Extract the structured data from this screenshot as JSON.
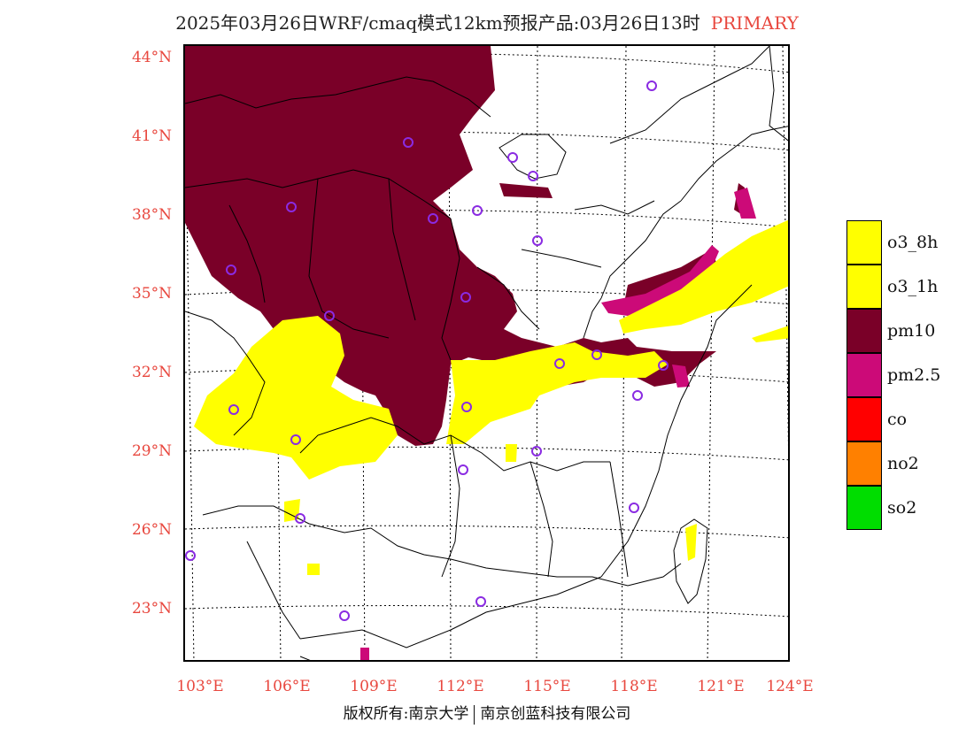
{
  "header": {
    "title": "2025年03月26日WRF/cmaq模式12km预报产品:03月26日13时",
    "tag": "PRIMARY"
  },
  "axes": {
    "lat_labels": [
      "44°N",
      "41°N",
      "38°N",
      "35°N",
      "32°N",
      "29°N",
      "26°N",
      "23°N"
    ],
    "lon_labels": [
      "103°E",
      "106°E",
      "109°E",
      "112°E",
      "115°E",
      "118°E",
      "121°E",
      "124°E"
    ]
  },
  "legend": {
    "items": [
      {
        "label": "o3_8h",
        "color": "#ffff00"
      },
      {
        "label": "o3_1h",
        "color": "#ffff00"
      },
      {
        "label": "pm10",
        "color": "#7a0028"
      },
      {
        "label": "pm2.5",
        "color": "#cc0a78"
      },
      {
        "label": "co",
        "color": "#ff0000"
      },
      {
        "label": "no2",
        "color": "#ff8000"
      },
      {
        "label": "so2",
        "color": "#00dd00"
      }
    ]
  },
  "footer": {
    "copyright": "版权所有:南京大学",
    "company": "南京创蓝科技有限公司"
  },
  "colors": {
    "pm10": "#7a0028",
    "pm25": "#cc0a78",
    "o3": "#ffff00",
    "station": "#8a2be2",
    "axis_text": "#e8473e"
  }
}
